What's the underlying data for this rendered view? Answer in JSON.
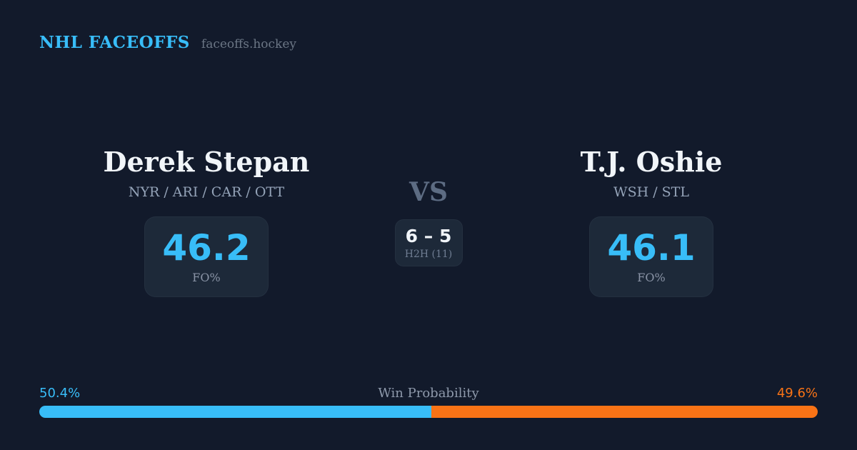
{
  "header": {
    "brand": "NHL FACEOFFS",
    "site": "faceoffs.hockey"
  },
  "players": {
    "left": {
      "name": "Derek Stepan",
      "teams": "NYR / ARI / CAR / OTT",
      "fo_value": "46.2",
      "fo_label": "FO%"
    },
    "right": {
      "name": "T.J. Oshie",
      "teams": "WSH / STL",
      "fo_value": "46.1",
      "fo_label": "FO%"
    }
  },
  "matchup": {
    "vs_label": "VS",
    "h2h_score": "6 – 5",
    "h2h_label": "H2H (11)"
  },
  "win_probability": {
    "label": "Win Probability",
    "left_pct": "50.4%",
    "right_pct": "49.6%",
    "left_value": 50.4,
    "right_value": 49.6
  },
  "colors": {
    "background": "#121a2b",
    "panel": "#1d2939",
    "accent_blue": "#38bdf8",
    "accent_orange": "#f97316",
    "text_primary": "#f1f5f9",
    "text_muted": "#94a3b8",
    "vs_gray": "#5d6c83"
  },
  "chart_data": {
    "type": "bar",
    "title": "Win Probability",
    "categories": [
      "Derek Stepan",
      "T.J. Oshie"
    ],
    "values": [
      50.4,
      49.6
    ],
    "unit": "%",
    "colors": [
      "#38bdf8",
      "#f97316"
    ],
    "layout": "single horizontal stacked bar, blue segment left (50.4%), orange segment right (49.6%), rounded ends",
    "related_stats": {
      "faceoff_pct": [
        46.2,
        46.1
      ],
      "head_to_head": "6 – 5 over 11 matchups"
    }
  }
}
